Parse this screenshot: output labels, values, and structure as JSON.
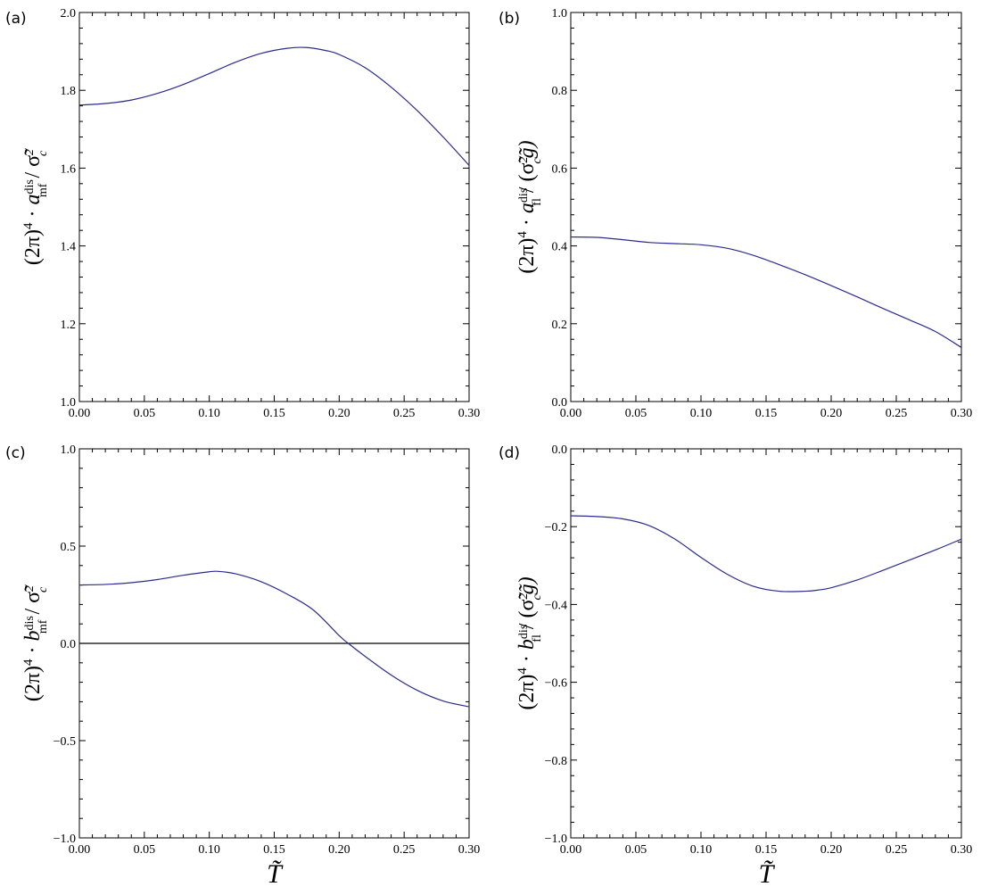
{
  "chart_data": [
    {
      "type": "line",
      "panel": "(a)",
      "ylabel": "(2π)⁴ · a_mf^dis / σ̃_c²",
      "ylabel_parts": {
        "pre": "(2π)",
        "pre_sup": "4",
        "dot": " · ",
        "sym": "a",
        "sub": "mf",
        "sup": "dis",
        "post": " / σ̃",
        "post_sub": "c",
        "post_sup": "2",
        "tail": ""
      },
      "xlabel": "",
      "xlim": [
        0,
        0.3
      ],
      "ylim": [
        1.0,
        2.0
      ],
      "xticks": [
        0.0,
        0.05,
        0.1,
        0.15,
        0.2,
        0.25,
        0.3
      ],
      "xtick_labels": [
        "0.00",
        "0.05",
        "0.10",
        "0.15",
        "0.20",
        "0.25",
        "0.30"
      ],
      "yticks": [
        1.0,
        1.2,
        1.4,
        1.6,
        1.8,
        2.0
      ],
      "ytick_labels": [
        "1.0",
        "1.2",
        "1.4",
        "1.6",
        "1.8",
        "2.0"
      ],
      "zero_line": false,
      "series": [
        {
          "x": [
            0.0,
            0.02,
            0.04,
            0.06,
            0.08,
            0.1,
            0.12,
            0.14,
            0.16,
            0.175,
            0.19,
            0.2,
            0.22,
            0.24,
            0.26,
            0.28,
            0.3
          ],
          "y": [
            1.762,
            1.766,
            1.775,
            1.792,
            1.815,
            1.843,
            1.872,
            1.895,
            1.908,
            1.91,
            1.902,
            1.892,
            1.858,
            1.808,
            1.748,
            1.68,
            1.607
          ]
        }
      ]
    },
    {
      "type": "line",
      "panel": "(b)",
      "ylabel": "(2π)⁴ · a_fl^dis / (σ̃_c² g̃)",
      "ylabel_parts": {
        "pre": "(2π)",
        "pre_sup": "4",
        "dot": " · ",
        "sym": "a",
        "sub": "fl",
        "sup": "dis",
        "post": " / (σ̃",
        "post_sub": "c",
        "post_sup": "2",
        "tail": "g̃)"
      },
      "xlabel": "",
      "xlim": [
        0,
        0.3
      ],
      "ylim": [
        0.0,
        1.0
      ],
      "xticks": [
        0.0,
        0.05,
        0.1,
        0.15,
        0.2,
        0.25,
        0.3
      ],
      "xtick_labels": [
        "0.00",
        "0.05",
        "0.10",
        "0.15",
        "0.20",
        "0.25",
        "0.30"
      ],
      "yticks": [
        0.0,
        0.2,
        0.4,
        0.6,
        0.8,
        1.0
      ],
      "ytick_labels": [
        "0.0",
        "0.2",
        "0.4",
        "0.6",
        "0.8",
        "1.0"
      ],
      "zero_line": false,
      "series": [
        {
          "x": [
            0.0,
            0.02,
            0.04,
            0.06,
            0.08,
            0.1,
            0.12,
            0.14,
            0.16,
            0.18,
            0.2,
            0.22,
            0.24,
            0.26,
            0.28,
            0.3
          ],
          "y": [
            0.423,
            0.422,
            0.416,
            0.409,
            0.406,
            0.403,
            0.394,
            0.376,
            0.352,
            0.326,
            0.298,
            0.269,
            0.239,
            0.21,
            0.18,
            0.139
          ]
        }
      ]
    },
    {
      "type": "line",
      "panel": "(c)",
      "ylabel": "(2π)⁴ · b_mf^dis / σ̃_c²",
      "ylabel_parts": {
        "pre": "(2π)",
        "pre_sup": "4",
        "dot": " · ",
        "sym": "b",
        "sub": "mf",
        "sup": "dis",
        "post": " / σ̃",
        "post_sub": "c",
        "post_sup": "2",
        "tail": ""
      },
      "xlabel": "T̃",
      "xlim": [
        0,
        0.3
      ],
      "ylim": [
        -1.0,
        1.0
      ],
      "xticks": [
        0.0,
        0.05,
        0.1,
        0.15,
        0.2,
        0.25,
        0.3
      ],
      "xtick_labels": [
        "0.00",
        "0.05",
        "0.10",
        "0.15",
        "0.20",
        "0.25",
        "0.30"
      ],
      "yticks": [
        -1.0,
        -0.5,
        0.0,
        0.5,
        1.0
      ],
      "ytick_labels": [
        "−1.0",
        "−0.5",
        "0.0",
        "0.5",
        "1.0"
      ],
      "zero_line": true,
      "series": [
        {
          "x": [
            0.0,
            0.02,
            0.04,
            0.06,
            0.08,
            0.1,
            0.107,
            0.12,
            0.14,
            0.16,
            0.18,
            0.2,
            0.207,
            0.22,
            0.24,
            0.26,
            0.28,
            0.3
          ],
          "y": [
            0.3,
            0.303,
            0.312,
            0.328,
            0.35,
            0.368,
            0.37,
            0.358,
            0.317,
            0.253,
            0.172,
            0.04,
            0.0,
            -0.067,
            -0.163,
            -0.241,
            -0.296,
            -0.326
          ]
        }
      ]
    },
    {
      "type": "line",
      "panel": "(d)",
      "ylabel": "(2π)⁴ · b_fl^dis / (σ̃_c² g̃)",
      "ylabel_parts": {
        "pre": "(2π)",
        "pre_sup": "4",
        "dot": " · ",
        "sym": "b",
        "sub": "fl",
        "sup": "dis",
        "post": " / (σ̃",
        "post_sub": "c",
        "post_sup": "2",
        "tail": "g̃)"
      },
      "xlabel": "T̃",
      "xlim": [
        0,
        0.3
      ],
      "ylim": [
        -1.0,
        0.0
      ],
      "xticks": [
        0.0,
        0.05,
        0.1,
        0.15,
        0.2,
        0.25,
        0.3
      ],
      "xtick_labels": [
        "0.00",
        "0.05",
        "0.10",
        "0.15",
        "0.20",
        "0.25",
        "0.30"
      ],
      "yticks": [
        -1.0,
        -0.8,
        -0.6,
        -0.4,
        -0.2,
        0.0
      ],
      "ytick_labels": [
        "−1.0",
        "−0.8",
        "−0.6",
        "−0.4",
        "−0.2",
        "0.0"
      ],
      "zero_line": false,
      "series": [
        {
          "x": [
            0.0,
            0.02,
            0.04,
            0.06,
            0.08,
            0.1,
            0.12,
            0.14,
            0.16,
            0.18,
            0.19,
            0.2,
            0.22,
            0.24,
            0.26,
            0.28,
            0.3
          ],
          "y": [
            -0.172,
            -0.174,
            -0.18,
            -0.197,
            -0.232,
            -0.279,
            -0.322,
            -0.353,
            -0.366,
            -0.366,
            -0.363,
            -0.357,
            -0.337,
            -0.312,
            -0.286,
            -0.26,
            -0.232
          ]
        }
      ]
    }
  ]
}
